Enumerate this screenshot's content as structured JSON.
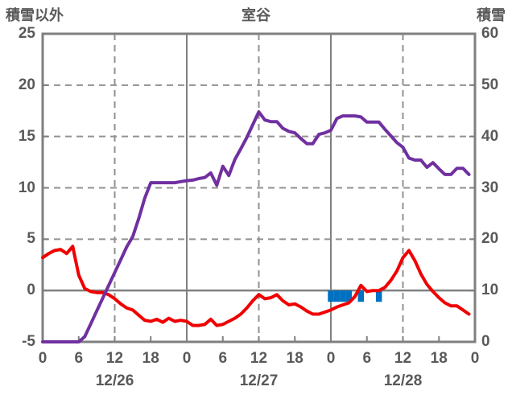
{
  "chart_data": {
    "type": "line",
    "title": "室谷",
    "left_axis": {
      "title": "積雪以外",
      "min": -5,
      "max": 25,
      "tick_values": [
        25,
        20,
        15,
        10,
        5,
        0,
        -5
      ]
    },
    "right_axis": {
      "title": "積雪",
      "min": 0,
      "max": 60,
      "tick_values": [
        60,
        50,
        40,
        30,
        20,
        10,
        0
      ]
    },
    "x_axis": {
      "total_hours": 72,
      "tick_hours": [
        0,
        6,
        12,
        18,
        24,
        30,
        36,
        42,
        48,
        54,
        60,
        66,
        72
      ],
      "tick_labels": [
        "0",
        "6",
        "12",
        "18",
        "0",
        "6",
        "12",
        "18",
        "0",
        "6",
        "12",
        "18",
        "0"
      ],
      "date_labels": [
        {
          "text": "12/26",
          "center_hour": 12
        },
        {
          "text": "12/27",
          "center_hour": 36
        },
        {
          "text": "12/28",
          "center_hour": 60
        }
      ]
    },
    "grid": {
      "h_dashed_left_values": [
        20,
        15,
        10,
        5
      ],
      "h_solid_left_values": [
        0
      ],
      "v_dashed_hours": [
        12,
        36,
        60
      ],
      "v_solid_hours": [
        24,
        48
      ]
    },
    "series": {
      "purple_line": {
        "axis": "right",
        "color": "#7030A0",
        "start_hour": 0,
        "step_hours": 1,
        "values": [
          0,
          0,
          0,
          0,
          0,
          0,
          0,
          1,
          3.5,
          6,
          8.5,
          11,
          13.5,
          16,
          18.5,
          20.5,
          24,
          28,
          31,
          31,
          31,
          31,
          31,
          31.2,
          31.4,
          31.5,
          31.8,
          32,
          32.9,
          30.5,
          34.2,
          32.4,
          35.5,
          37.6,
          39.8,
          42.3,
          44.8,
          43.2,
          42.9,
          42.9,
          41.6,
          41,
          40.7,
          39.6,
          38.6,
          38.6,
          40.4,
          40.7,
          41.2,
          43.5,
          44,
          44,
          44,
          43.8,
          42.8,
          42.8,
          42.8,
          41.4,
          40.1,
          38.8,
          37.9,
          35.8,
          35.4,
          35.4,
          34,
          34.9,
          33.7,
          32.6,
          32.6,
          33.8,
          33.8,
          32.6
        ]
      },
      "red_line": {
        "axis": "left",
        "color": "#F00000",
        "start_hour": 0,
        "step_hours": 1,
        "values": [
          3.2,
          3.6,
          3.9,
          4,
          3.6,
          4.3,
          1.5,
          0.2,
          -0.1,
          -0.2,
          -0.2,
          -0.4,
          -0.8,
          -1.3,
          -1.7,
          -1.9,
          -2.4,
          -2.9,
          -3,
          -2.8,
          -3.1,
          -2.7,
          -3,
          -2.9,
          -3,
          -3.4,
          -3.4,
          -3.3,
          -2.8,
          -3.4,
          -3.3,
          -3,
          -2.7,
          -2.3,
          -1.7,
          -1,
          -0.4,
          -0.8,
          -0.7,
          -0.4,
          -1,
          -1.4,
          -1.3,
          -1.6,
          -2,
          -2.3,
          -2.3,
          -2.1,
          -1.9,
          -1.6,
          -1.4,
          -1.2,
          -0.6,
          0.5,
          -0.1,
          0,
          0,
          0.3,
          1,
          1.9,
          3.2,
          3.9,
          2.9,
          1.6,
          0.6,
          -0.1,
          -0.7,
          -1.2,
          -1.5,
          -1.5,
          -1.9,
          -2.3
        ]
      },
      "blue_bars": {
        "axis": "left",
        "color": "#0070C0",
        "hours": [
          48,
          49,
          50,
          51,
          53,
          56
        ],
        "top_value": 0,
        "bottom_value": -1.1
      }
    },
    "colors": {
      "text": "#595959",
      "frame": "#7F7F7F",
      "grid": "#919191",
      "axis": "#808080"
    }
  }
}
